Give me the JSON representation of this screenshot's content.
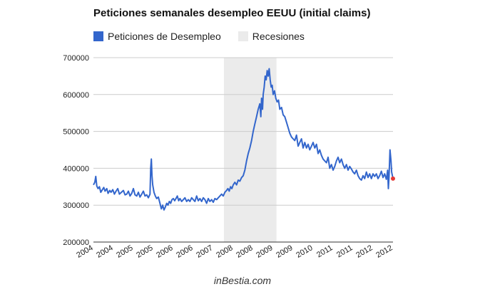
{
  "chart_data": {
    "type": "line",
    "title": "Peticiones semanales desempleo EEUU (initial claims)",
    "legend_position": "top-left",
    "series": [
      {
        "name": "Peticiones de Desempleo",
        "color": "#3366cc",
        "points": [
          [
            2004.0,
            355000
          ],
          [
            2004.04,
            362000
          ],
          [
            2004.07,
            378000
          ],
          [
            2004.1,
            352000
          ],
          [
            2004.14,
            345000
          ],
          [
            2004.18,
            350000
          ],
          [
            2004.22,
            335000
          ],
          [
            2004.27,
            342000
          ],
          [
            2004.31,
            348000
          ],
          [
            2004.35,
            338000
          ],
          [
            2004.4,
            345000
          ],
          [
            2004.44,
            332000
          ],
          [
            2004.49,
            340000
          ],
          [
            2004.53,
            335000
          ],
          [
            2004.58,
            342000
          ],
          [
            2004.63,
            330000
          ],
          [
            2004.68,
            338000
          ],
          [
            2004.73,
            345000
          ],
          [
            2004.78,
            330000
          ],
          [
            2004.84,
            335000
          ],
          [
            2004.9,
            340000
          ],
          [
            2004.95,
            328000
          ],
          [
            2005.0,
            330000
          ],
          [
            2005.05,
            338000
          ],
          [
            2005.1,
            325000
          ],
          [
            2005.15,
            332000
          ],
          [
            2005.2,
            345000
          ],
          [
            2005.25,
            328000
          ],
          [
            2005.3,
            325000
          ],
          [
            2005.35,
            335000
          ],
          [
            2005.4,
            322000
          ],
          [
            2005.45,
            330000
          ],
          [
            2005.5,
            338000
          ],
          [
            2005.55,
            325000
          ],
          [
            2005.6,
            328000
          ],
          [
            2005.65,
            320000
          ],
          [
            2005.7,
            330000
          ],
          [
            2005.72,
            400000
          ],
          [
            2005.74,
            425000
          ],
          [
            2005.76,
            380000
          ],
          [
            2005.78,
            355000
          ],
          [
            2005.82,
            335000
          ],
          [
            2005.86,
            325000
          ],
          [
            2005.9,
            318000
          ],
          [
            2005.95,
            322000
          ],
          [
            2006.0,
            305000
          ],
          [
            2006.04,
            290000
          ],
          [
            2006.08,
            300000
          ],
          [
            2006.12,
            287000
          ],
          [
            2006.16,
            295000
          ],
          [
            2006.2,
            305000
          ],
          [
            2006.24,
            300000
          ],
          [
            2006.28,
            310000
          ],
          [
            2006.32,
            305000
          ],
          [
            2006.36,
            315000
          ],
          [
            2006.4,
            318000
          ],
          [
            2006.44,
            312000
          ],
          [
            2006.48,
            318000
          ],
          [
            2006.52,
            325000
          ],
          [
            2006.56,
            312000
          ],
          [
            2006.6,
            318000
          ],
          [
            2006.65,
            310000
          ],
          [
            2006.7,
            315000
          ],
          [
            2006.75,
            320000
          ],
          [
            2006.8,
            310000
          ],
          [
            2006.85,
            315000
          ],
          [
            2006.9,
            310000
          ],
          [
            2006.95,
            320000
          ],
          [
            2007.0,
            315000
          ],
          [
            2007.05,
            310000
          ],
          [
            2007.1,
            325000
          ],
          [
            2007.15,
            312000
          ],
          [
            2007.2,
            318000
          ],
          [
            2007.25,
            310000
          ],
          [
            2007.3,
            320000
          ],
          [
            2007.35,
            315000
          ],
          [
            2007.4,
            305000
          ],
          [
            2007.45,
            318000
          ],
          [
            2007.5,
            310000
          ],
          [
            2007.55,
            315000
          ],
          [
            2007.6,
            308000
          ],
          [
            2007.65,
            318000
          ],
          [
            2007.7,
            315000
          ],
          [
            2007.75,
            320000
          ],
          [
            2007.8,
            325000
          ],
          [
            2007.85,
            330000
          ],
          [
            2007.9,
            325000
          ],
          [
            2007.95,
            335000
          ],
          [
            2008.0,
            340000
          ],
          [
            2008.04,
            345000
          ],
          [
            2008.08,
            338000
          ],
          [
            2008.12,
            350000
          ],
          [
            2008.16,
            345000
          ],
          [
            2008.2,
            355000
          ],
          [
            2008.25,
            362000
          ],
          [
            2008.3,
            355000
          ],
          [
            2008.35,
            368000
          ],
          [
            2008.4,
            365000
          ],
          [
            2008.45,
            375000
          ],
          [
            2008.5,
            380000
          ],
          [
            2008.55,
            395000
          ],
          [
            2008.6,
            420000
          ],
          [
            2008.65,
            440000
          ],
          [
            2008.7,
            455000
          ],
          [
            2008.75,
            475000
          ],
          [
            2008.8,
            500000
          ],
          [
            2008.85,
            520000
          ],
          [
            2008.9,
            540000
          ],
          [
            2008.95,
            560000
          ],
          [
            2009.0,
            575000
          ],
          [
            2009.03,
            540000
          ],
          [
            2009.05,
            590000
          ],
          [
            2009.08,
            560000
          ],
          [
            2009.1,
            600000
          ],
          [
            2009.13,
            620000
          ],
          [
            2009.16,
            650000
          ],
          [
            2009.19,
            640000
          ],
          [
            2009.22,
            665000
          ],
          [
            2009.25,
            650000
          ],
          [
            2009.28,
            670000
          ],
          [
            2009.31,
            640000
          ],
          [
            2009.34,
            620000
          ],
          [
            2009.37,
            625000
          ],
          [
            2009.4,
            600000
          ],
          [
            2009.44,
            610000
          ],
          [
            2009.48,
            590000
          ],
          [
            2009.52,
            580000
          ],
          [
            2009.56,
            585000
          ],
          [
            2009.6,
            560000
          ],
          [
            2009.65,
            565000
          ],
          [
            2009.7,
            545000
          ],
          [
            2009.75,
            540000
          ],
          [
            2009.8,
            525000
          ],
          [
            2009.85,
            510000
          ],
          [
            2009.9,
            495000
          ],
          [
            2009.95,
            485000
          ],
          [
            2010.0,
            480000
          ],
          [
            2010.05,
            475000
          ],
          [
            2010.1,
            490000
          ],
          [
            2010.15,
            460000
          ],
          [
            2010.2,
            470000
          ],
          [
            2010.25,
            480000
          ],
          [
            2010.3,
            455000
          ],
          [
            2010.35,
            470000
          ],
          [
            2010.4,
            455000
          ],
          [
            2010.45,
            465000
          ],
          [
            2010.5,
            450000
          ],
          [
            2010.55,
            460000
          ],
          [
            2010.6,
            470000
          ],
          [
            2010.65,
            455000
          ],
          [
            2010.7,
            465000
          ],
          [
            2010.75,
            440000
          ],
          [
            2010.8,
            450000
          ],
          [
            2010.85,
            435000
          ],
          [
            2010.9,
            425000
          ],
          [
            2010.95,
            420000
          ],
          [
            2011.0,
            415000
          ],
          [
            2011.05,
            430000
          ],
          [
            2011.1,
            400000
          ],
          [
            2011.15,
            410000
          ],
          [
            2011.2,
            395000
          ],
          [
            2011.25,
            405000
          ],
          [
            2011.3,
            420000
          ],
          [
            2011.35,
            430000
          ],
          [
            2011.4,
            415000
          ],
          [
            2011.45,
            425000
          ],
          [
            2011.5,
            410000
          ],
          [
            2011.55,
            400000
          ],
          [
            2011.6,
            410000
          ],
          [
            2011.65,
            395000
          ],
          [
            2011.7,
            405000
          ],
          [
            2011.75,
            398000
          ],
          [
            2011.8,
            390000
          ],
          [
            2011.85,
            385000
          ],
          [
            2011.9,
            395000
          ],
          [
            2011.95,
            380000
          ],
          [
            2012.0,
            372000
          ],
          [
            2012.05,
            368000
          ],
          [
            2012.1,
            380000
          ],
          [
            2012.15,
            372000
          ],
          [
            2012.2,
            390000
          ],
          [
            2012.25,
            375000
          ],
          [
            2012.3,
            385000
          ],
          [
            2012.35,
            372000
          ],
          [
            2012.4,
            385000
          ],
          [
            2012.45,
            378000
          ],
          [
            2012.5,
            385000
          ],
          [
            2012.55,
            372000
          ],
          [
            2012.6,
            380000
          ],
          [
            2012.65,
            392000
          ],
          [
            2012.7,
            375000
          ],
          [
            2012.75,
            385000
          ],
          [
            2012.8,
            370000
          ],
          [
            2012.84,
            395000
          ],
          [
            2012.86,
            345000
          ],
          [
            2012.88,
            375000
          ],
          [
            2012.91,
            450000
          ],
          [
            2012.94,
            420000
          ],
          [
            2012.96,
            390000
          ],
          [
            2013.0,
            372000
          ]
        ]
      },
      {
        "name": "Recesiones",
        "color": "#efefef",
        "bands": [
          [
            2007.92,
            2009.5
          ]
        ]
      }
    ],
    "last_point_marker": {
      "x": 2013.0,
      "y": 372000,
      "color": "#e53935"
    },
    "y_axis": {
      "min": 200000,
      "max": 700000,
      "ticks": [
        "200000",
        "300000",
        "400000",
        "500000",
        "600000",
        "700000"
      ]
    },
    "x_axis": {
      "min": 2004.0,
      "max": 2013.0,
      "tick_labels": [
        "2004",
        "2004",
        "2005",
        "2005",
        "2006",
        "2006",
        "2007",
        "2008",
        "2008",
        "2009",
        "2009",
        "2010",
        "2011",
        "2011",
        "2012",
        "2012"
      ],
      "label_rotation": -30
    },
    "grid": "horizontal"
  },
  "footer": "inBestia.com"
}
